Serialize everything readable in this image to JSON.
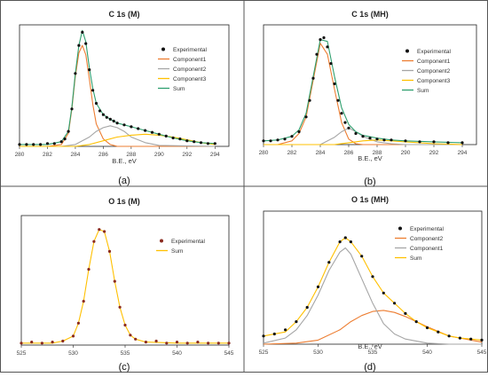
{
  "chart_data": [
    {
      "type": "line",
      "panel_label": "(a)",
      "title": "C 1s (M)",
      "xlabel": "B.E., eV",
      "xlim": [
        280,
        295
      ],
      "xticks": [
        280,
        282,
        284,
        286,
        288,
        290,
        292,
        294
      ],
      "ylim": [
        0,
        130
      ],
      "legend_position": "right",
      "series": [
        {
          "name": "Experimental",
          "style": "points",
          "color": "#111111",
          "x": [
            280,
            280.5,
            281,
            281.5,
            282,
            282.5,
            283,
            283.25,
            283.5,
            283.75,
            284,
            284.25,
            284.5,
            284.75,
            285,
            285.25,
            285.5,
            285.75,
            286,
            286.25,
            286.5,
            286.75,
            287,
            287.5,
            288,
            288.5,
            289,
            289.5,
            290,
            290.5,
            291,
            291.5,
            292,
            292.5,
            293,
            293.5,
            294
          ],
          "y": [
            2,
            2,
            2,
            2,
            3,
            3,
            5,
            8,
            16,
            40,
            78,
            108,
            122,
            110,
            82,
            60,
            46,
            38,
            34,
            31,
            29,
            27,
            25,
            23,
            21,
            19,
            17,
            15,
            13,
            11,
            9,
            8,
            6,
            5,
            4,
            3,
            3
          ]
        },
        {
          "name": "Component1",
          "style": "line",
          "color": "#ED7D31",
          "x": [
            280,
            282,
            283,
            283.5,
            283.75,
            284,
            284.25,
            284.5,
            284.75,
            285,
            285.25,
            285.5,
            286,
            286.5,
            287,
            288,
            290,
            294
          ],
          "y": [
            0,
            0,
            2,
            14,
            40,
            75,
            100,
            108,
            98,
            72,
            45,
            24,
            8,
            2,
            0,
            0,
            0,
            0
          ]
        },
        {
          "name": "Component2",
          "style": "line",
          "color": "#A5A5A5",
          "x": [
            280,
            283,
            284,
            285,
            285.5,
            286,
            286.5,
            287,
            287.5,
            288,
            289,
            290,
            294
          ],
          "y": [
            0,
            0,
            2,
            10,
            16,
            20,
            22,
            20,
            16,
            10,
            4,
            1,
            0
          ]
        },
        {
          "name": "Component3",
          "style": "line",
          "color": "#FFC000",
          "x": [
            280,
            284,
            285,
            286,
            287,
            288,
            289,
            290,
            291,
            292,
            293,
            294
          ],
          "y": [
            0,
            0,
            2,
            6,
            10,
            12,
            13,
            12,
            10,
            7,
            4,
            2
          ]
        },
        {
          "name": "Sum",
          "style": "line",
          "color": "#2E9F6E",
          "x": [
            280,
            282,
            283,
            283.5,
            283.75,
            284,
            284.25,
            284.5,
            284.75,
            285,
            285.25,
            285.5,
            286,
            286.5,
            287,
            287.5,
            288,
            289,
            290,
            291,
            292,
            293,
            294
          ],
          "y": [
            2,
            2,
            5,
            16,
            42,
            78,
            108,
            124,
            112,
            84,
            62,
            46,
            34,
            29,
            25,
            23,
            21,
            17,
            13,
            9,
            6,
            4,
            3
          ]
        }
      ]
    },
    {
      "type": "line",
      "panel_label": "(b)",
      "title": "C 1s (MH)",
      "xlabel": "B.E., eV",
      "xlim": [
        280,
        295
      ],
      "xticks": [
        280,
        282,
        284,
        286,
        288,
        290,
        292,
        294
      ],
      "ylim": [
        0,
        130
      ],
      "legend_position": "right",
      "series": [
        {
          "name": "Experimental",
          "style": "points",
          "color": "#111111",
          "x": [
            280,
            280.5,
            281,
            281.5,
            282,
            282.5,
            283,
            283.25,
            283.5,
            283.75,
            284,
            284.25,
            284.5,
            284.75,
            285,
            285.25,
            285.5,
            285.75,
            286,
            286.5,
            287,
            287.5,
            288,
            288.5,
            289,
            290,
            291,
            292,
            293,
            294
          ],
          "y": [
            4,
            4,
            5,
            6,
            9,
            14,
            30,
            48,
            72,
            98,
            114,
            116,
            106,
            88,
            66,
            48,
            34,
            24,
            18,
            12,
            9,
            7,
            6,
            5,
            5,
            4,
            3,
            3,
            2,
            2
          ]
        },
        {
          "name": "Component1",
          "style": "line",
          "color": "#ED7D31",
          "x": [
            280,
            281,
            282,
            282.5,
            283,
            283.5,
            284,
            284.5,
            285,
            285.5,
            286,
            286.5,
            287,
            288,
            290,
            294
          ],
          "y": [
            0,
            0,
            4,
            12,
            30,
            70,
            110,
            98,
            60,
            24,
            6,
            1,
            0,
            0,
            0,
            0
          ]
        },
        {
          "name": "Component2",
          "style": "line",
          "color": "#A5A5A5",
          "x": [
            280,
            284,
            285,
            285.5,
            286,
            286.5,
            287,
            288,
            289,
            290,
            294
          ],
          "y": [
            0,
            0,
            8,
            14,
            18,
            14,
            9,
            3,
            1,
            0,
            0
          ]
        },
        {
          "name": "Component3",
          "style": "line",
          "color": "#FFC000",
          "x": [
            280,
            285,
            286,
            287,
            288,
            289,
            290,
            292,
            294
          ],
          "y": [
            0,
            0,
            2,
            4,
            5,
            4,
            3,
            1,
            0
          ]
        },
        {
          "name": "Sum",
          "style": "line",
          "color": "#2E9F6E",
          "x": [
            280,
            281,
            282,
            282.5,
            283,
            283.5,
            284,
            284.5,
            285,
            285.5,
            286,
            286.5,
            287,
            288,
            289,
            290,
            292,
            294
          ],
          "y": [
            4,
            5,
            9,
            16,
            34,
            74,
            114,
            112,
            74,
            40,
            22,
            14,
            10,
            7,
            5,
            4,
            3,
            2
          ]
        }
      ]
    },
    {
      "type": "line",
      "panel_label": "(c)",
      "title": "O 1s (M)",
      "xlabel": "",
      "xlim": [
        525,
        545
      ],
      "xticks": [
        525,
        530,
        535,
        540,
        545
      ],
      "ylim": [
        0,
        130
      ],
      "legend_position": "right",
      "series": [
        {
          "name": "Experimental",
          "style": "points",
          "color": "#8B2B1F",
          "x": [
            525,
            526,
            527,
            528,
            529,
            530,
            530.5,
            531,
            531.5,
            532,
            532.5,
            533,
            533.5,
            534,
            534.5,
            535,
            535.5,
            536,
            537,
            538,
            539,
            540,
            541,
            542,
            543,
            544,
            545
          ],
          "y": [
            2,
            3,
            2,
            3,
            4,
            9,
            22,
            44,
            76,
            104,
            116,
            114,
            94,
            64,
            38,
            20,
            10,
            6,
            3,
            4,
            2,
            3,
            2,
            3,
            2,
            2,
            2
          ]
        },
        {
          "name": "Sum",
          "style": "line",
          "color": "#FFC000",
          "x": [
            525,
            528,
            529,
            530,
            530.5,
            531,
            531.5,
            532,
            532.5,
            533,
            533.5,
            534,
            534.5,
            535,
            535.5,
            536,
            537,
            540,
            545
          ],
          "y": [
            2,
            2,
            4,
            9,
            22,
            44,
            76,
            104,
            116,
            114,
            94,
            64,
            38,
            20,
            10,
            6,
            3,
            2,
            2
          ]
        }
      ]
    },
    {
      "type": "line",
      "panel_label": "(d)",
      "title": "O 1s (MH)",
      "xlabel": "B.E., eV",
      "xlim": [
        525,
        545
      ],
      "xticks": [
        525,
        530,
        535,
        540,
        545
      ],
      "ylim": [
        0,
        130
      ],
      "legend_position": "right",
      "series": [
        {
          "name": "Experimental",
          "style": "points",
          "color": "#111111",
          "x": [
            525,
            526,
            527,
            528,
            529,
            530,
            531,
            532,
            532.5,
            533,
            534,
            535,
            536,
            537,
            538,
            539,
            540,
            541,
            542,
            543,
            544,
            545
          ],
          "y": [
            8,
            10,
            14,
            22,
            36,
            56,
            80,
            100,
            104,
            100,
            86,
            66,
            50,
            40,
            30,
            22,
            16,
            12,
            8,
            6,
            5,
            4
          ]
        },
        {
          "name": "Component2",
          "style": "line",
          "color": "#ED7D31",
          "x": [
            525,
            528,
            530,
            532,
            533,
            534,
            535,
            536,
            537,
            538,
            540,
            542,
            545
          ],
          "y": [
            0,
            1,
            4,
            14,
            22,
            28,
            32,
            33,
            31,
            27,
            17,
            8,
            2
          ]
        },
        {
          "name": "Component1",
          "style": "line",
          "color": "#A5A5A5",
          "x": [
            525,
            527,
            528,
            529,
            530,
            531,
            532,
            532.5,
            533,
            534,
            535,
            536,
            537,
            538,
            540,
            542,
            545
          ],
          "y": [
            1,
            6,
            14,
            28,
            48,
            72,
            90,
            94,
            88,
            64,
            40,
            20,
            10,
            5,
            1,
            0,
            0
          ]
        },
        {
          "name": "Sum",
          "style": "line",
          "color": "#FFC000",
          "x": [
            525,
            527,
            528,
            529,
            530,
            531,
            532,
            532.5,
            533,
            534,
            535,
            536,
            537,
            538,
            539,
            540,
            541,
            542,
            543,
            544,
            545
          ],
          "y": [
            8,
            12,
            22,
            36,
            56,
            80,
            100,
            104,
            100,
            86,
            66,
            50,
            40,
            30,
            22,
            16,
            12,
            8,
            6,
            5,
            4
          ]
        }
      ]
    }
  ]
}
